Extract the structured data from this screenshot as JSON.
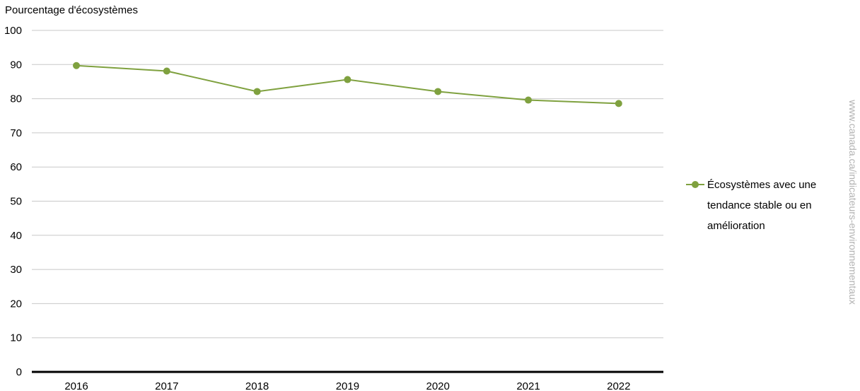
{
  "chart_data": {
    "type": "line",
    "ylabel": "Pourcentage d'écosystèmes",
    "categories": [
      "2016",
      "2017",
      "2018",
      "2019",
      "2020",
      "2021",
      "2022"
    ],
    "ylim": [
      0,
      100
    ],
    "yticks": [
      0,
      10,
      20,
      30,
      40,
      50,
      60,
      70,
      80,
      90,
      100
    ],
    "grid": true,
    "legend_position": "right",
    "series": [
      {
        "name": "Écosystèmes avec une tendance stable ou en amélioration",
        "values": [
          89.7,
          88.1,
          82.1,
          85.6,
          82.1,
          79.6,
          78.6
        ],
        "color": "#7fa13f"
      }
    ]
  },
  "watermark": "www.canada.ca/indicateurs-environnementaux"
}
